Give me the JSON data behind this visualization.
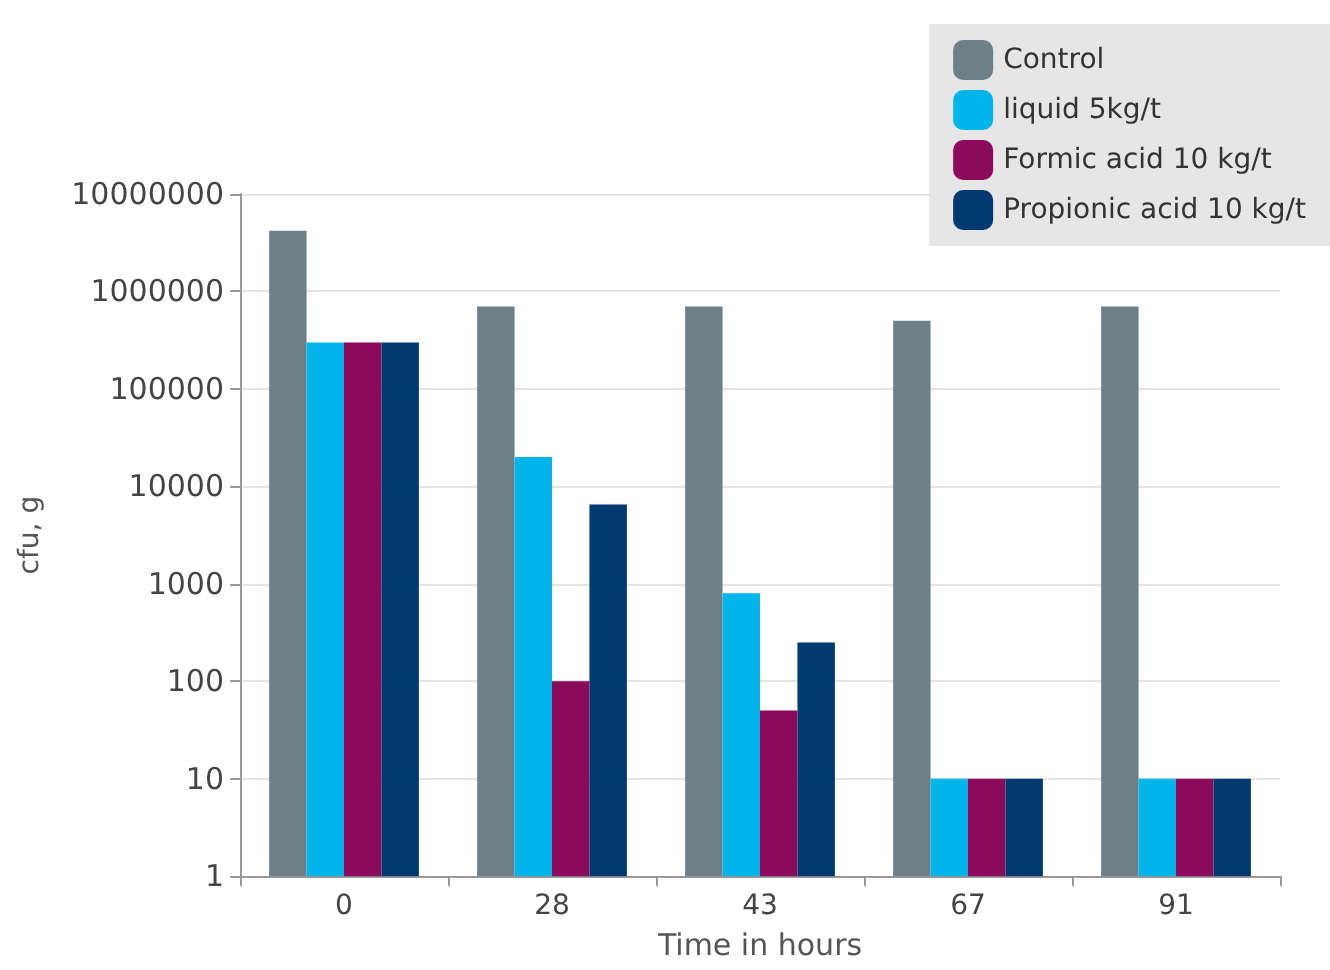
{
  "chart_data": {
    "type": "bar",
    "xlabel": "Time in hours",
    "ylabel": "cfu, g",
    "categories": [
      "0",
      "28",
      "43",
      "67",
      "91"
    ],
    "series": [
      {
        "name": "Control",
        "color": "#6e7f88",
        "values": [
          4200000,
          700000,
          700000,
          500000,
          700000
        ]
      },
      {
        "name": "liquid 5kg/t",
        "color": "#00b5ea",
        "values": [
          300000,
          20000,
          800,
          10,
          10
        ]
      },
      {
        "name": "Formic acid 10 kg/t",
        "color": "#8c0a5c",
        "values": [
          300000,
          100,
          50,
          10,
          10
        ]
      },
      {
        "name": "Propionic acid 10 kg/t",
        "color": "#003a70",
        "values": [
          300000,
          6500,
          250,
          10,
          10
        ]
      }
    ],
    "log": "y",
    "ylim": [
      1,
      10000000
    ],
    "yticks": [
      1,
      10,
      100,
      1000,
      10000,
      100000,
      1000000,
      10000000
    ],
    "grid": "y",
    "legend": "top right"
  }
}
